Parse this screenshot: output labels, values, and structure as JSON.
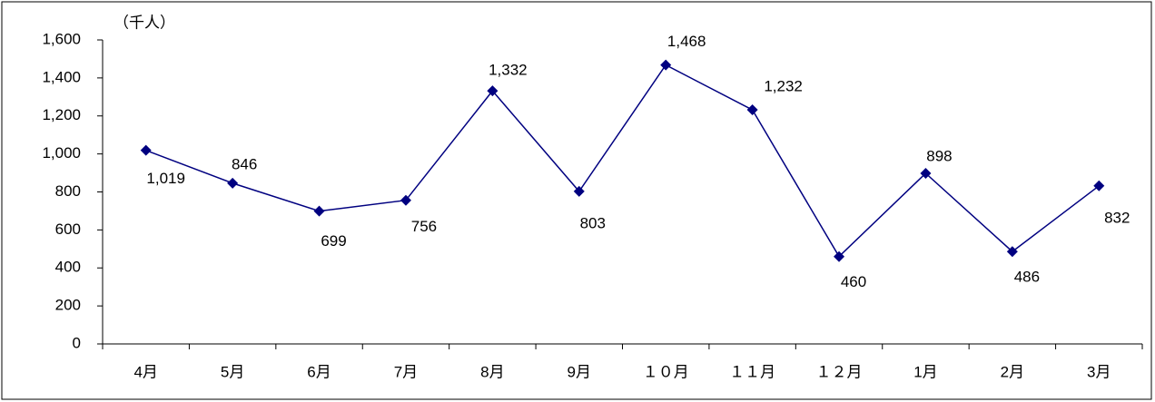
{
  "chart_data": {
    "type": "line",
    "y_axis_label": "（千人）",
    "categories": [
      "4月",
      "5月",
      "6月",
      "7月",
      "8月",
      "9月",
      "１０月",
      "１１月",
      "１２月",
      "1月",
      "2月",
      "3月"
    ],
    "series": [
      {
        "color": "#000080",
        "values": [
          1019,
          846,
          699,
          756,
          1332,
          803,
          1468,
          1232,
          460,
          898,
          486,
          832
        ],
        "value_labels": [
          "1,019",
          "846",
          "699",
          "756",
          "1,332",
          "803",
          "1,468",
          "1,232",
          "460",
          "898",
          "486",
          "832"
        ]
      }
    ],
    "ylim": [
      0,
      1600
    ],
    "yticks": [
      0,
      200,
      400,
      600,
      800,
      {
        "value": 1000,
        "label": "1,000"
      },
      {
        "value": 1200,
        "label": "1,200"
      },
      {
        "value": 1400,
        "label": "1,400"
      },
      {
        "value": 1600,
        "label": "1,600"
      }
    ],
    "grid": false
  }
}
